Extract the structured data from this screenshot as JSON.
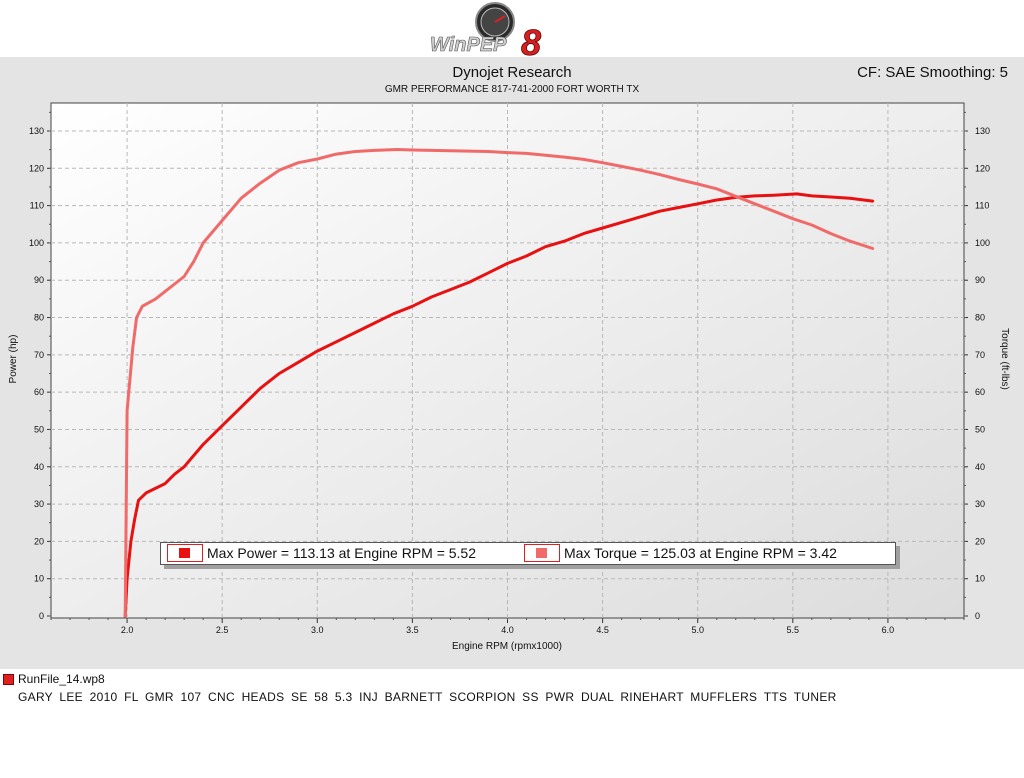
{
  "header": {
    "logo_text": "WinPEP",
    "logo_version": "8",
    "title": "Dynojet Research",
    "subtitle": "GMR PERFORMANCE 817-741-2000  FORT WORTH TX",
    "cf_label": "CF: SAE Smoothing: 5"
  },
  "legend": {
    "power_text": "Max Power = 113.13 at Engine RPM = 5.52",
    "torque_text": "Max Torque = 125.03 at Engine RPM = 3.42"
  },
  "footer": {
    "run_file": "RunFile_14.wp8",
    "description": "GARY  LEE  2010  FL  GMR  107  CNC  HEADS  SE  58  5.3  INJ  BARNETT  SCORPION  SS  PWR  DUAL  RINEHART  MUFFLERS  TTS  TUNER"
  },
  "colors": {
    "power": "#e81010",
    "torque": "#f06a6a",
    "plot_bg": "#f4f4f4",
    "panel_bg": "#e4e4e4"
  },
  "chart_data": {
    "type": "line",
    "xlabel": "Engine RPM (rpmx1000)",
    "ylabel": "Power (hp)",
    "y2label": "Torque (ft-lbs)",
    "xlim": [
      1.6,
      6.4
    ],
    "ylim": [
      0,
      135
    ],
    "y2lim": [
      0,
      135
    ],
    "x_ticks": [
      2.0,
      2.5,
      3.0,
      3.5,
      4.0,
      4.5,
      5.0,
      5.5,
      6.0
    ],
    "y_ticks": [
      0,
      10,
      20,
      30,
      40,
      50,
      60,
      70,
      80,
      90,
      100,
      110,
      120,
      130
    ],
    "grid": true,
    "series": [
      {
        "name": "Power",
        "axis": "left",
        "color": "#e81010",
        "points": [
          [
            1.99,
            0
          ],
          [
            2.0,
            10
          ],
          [
            2.02,
            20
          ],
          [
            2.04,
            26
          ],
          [
            2.06,
            31
          ],
          [
            2.1,
            33
          ],
          [
            2.2,
            35.5
          ],
          [
            2.25,
            38
          ],
          [
            2.3,
            40
          ],
          [
            2.4,
            46
          ],
          [
            2.5,
            51
          ],
          [
            2.6,
            56
          ],
          [
            2.7,
            61
          ],
          [
            2.8,
            65
          ],
          [
            2.9,
            68
          ],
          [
            3.0,
            71
          ],
          [
            3.1,
            73.5
          ],
          [
            3.2,
            76
          ],
          [
            3.3,
            78.5
          ],
          [
            3.4,
            81
          ],
          [
            3.5,
            83
          ],
          [
            3.6,
            85.5
          ],
          [
            3.7,
            87.5
          ],
          [
            3.8,
            89.5
          ],
          [
            3.9,
            92
          ],
          [
            4.0,
            94.5
          ],
          [
            4.1,
            96.5
          ],
          [
            4.2,
            99
          ],
          [
            4.3,
            100.5
          ],
          [
            4.4,
            102.5
          ],
          [
            4.5,
            104
          ],
          [
            4.6,
            105.5
          ],
          [
            4.7,
            107
          ],
          [
            4.8,
            108.5
          ],
          [
            4.9,
            109.5
          ],
          [
            5.0,
            110.5
          ],
          [
            5.1,
            111.5
          ],
          [
            5.2,
            112.2
          ],
          [
            5.3,
            112.6
          ],
          [
            5.4,
            112.8
          ],
          [
            5.5,
            113.1
          ],
          [
            5.52,
            113.13
          ],
          [
            5.6,
            112.6
          ],
          [
            5.7,
            112.3
          ],
          [
            5.8,
            112
          ],
          [
            5.92,
            111.2
          ]
        ]
      },
      {
        "name": "Torque",
        "axis": "right",
        "color": "#f06a6a",
        "points": [
          [
            1.99,
            0
          ],
          [
            2.0,
            55
          ],
          [
            2.03,
            72
          ],
          [
            2.05,
            80
          ],
          [
            2.08,
            83
          ],
          [
            2.15,
            85
          ],
          [
            2.2,
            87
          ],
          [
            2.25,
            89
          ],
          [
            2.3,
            91
          ],
          [
            2.35,
            95
          ],
          [
            2.4,
            100
          ],
          [
            2.5,
            106
          ],
          [
            2.6,
            112
          ],
          [
            2.7,
            116
          ],
          [
            2.8,
            119.5
          ],
          [
            2.9,
            121.5
          ],
          [
            3.0,
            122.5
          ],
          [
            3.1,
            123.8
          ],
          [
            3.2,
            124.5
          ],
          [
            3.3,
            124.8
          ],
          [
            3.42,
            125.03
          ],
          [
            3.5,
            124.9
          ],
          [
            3.6,
            124.8
          ],
          [
            3.7,
            124.7
          ],
          [
            3.8,
            124.6
          ],
          [
            3.9,
            124.5
          ],
          [
            4.0,
            124.2
          ],
          [
            4.1,
            124
          ],
          [
            4.2,
            123.5
          ],
          [
            4.3,
            123
          ],
          [
            4.4,
            122.4
          ],
          [
            4.5,
            121.5
          ],
          [
            4.6,
            120.5
          ],
          [
            4.7,
            119.5
          ],
          [
            4.8,
            118.3
          ],
          [
            4.9,
            117
          ],
          [
            5.0,
            115.8
          ],
          [
            5.1,
            114.5
          ],
          [
            5.2,
            112.5
          ],
          [
            5.3,
            110.5
          ],
          [
            5.4,
            108.5
          ],
          [
            5.5,
            106.5
          ],
          [
            5.6,
            104.8
          ],
          [
            5.7,
            102.5
          ],
          [
            5.8,
            100.5
          ],
          [
            5.92,
            98.5
          ]
        ]
      }
    ]
  }
}
